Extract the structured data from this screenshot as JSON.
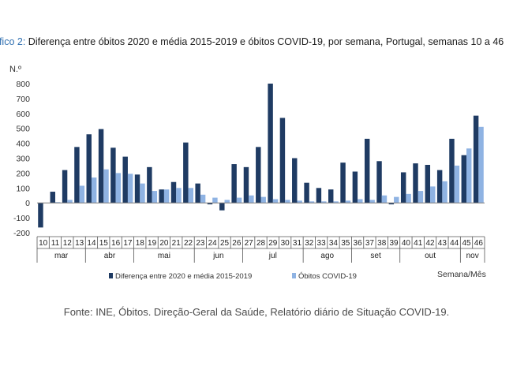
{
  "title_label": "áfico 2:",
  "title_text": " Diferença entre óbitos 2020 e média 2015-2019 e óbitos COVID-19, por semana, Portugal, semanas 10 a 46",
  "source": "Fonte: INE, Óbitos. Direção-Geral da Saúde, Relatório diário de Situação COVID-19.",
  "colors": {
    "dark": "#1f3b63",
    "light": "#8fb3e3"
  },
  "chart_data": {
    "type": "bar",
    "ylabel": "N.º",
    "xlabel": "Semana/Mês",
    "ylim": [
      -200,
      800
    ],
    "yticks": [
      -200,
      -100,
      0,
      100,
      200,
      300,
      400,
      500,
      600,
      700,
      800
    ],
    "categories": [
      "10",
      "11",
      "12",
      "13",
      "14",
      "15",
      "16",
      "17",
      "18",
      "19",
      "20",
      "21",
      "22",
      "23",
      "24",
      "25",
      "26",
      "27",
      "28",
      "29",
      "30",
      "31",
      "32",
      "33",
      "34",
      "35",
      "36",
      "37",
      "38",
      "39",
      "40",
      "41",
      "42",
      "43",
      "44",
      "45",
      "46"
    ],
    "months": [
      {
        "label": "mar",
        "start": 0,
        "end": 3
      },
      {
        "label": "abr",
        "start": 4,
        "end": 7
      },
      {
        "label": "mai",
        "start": 8,
        "end": 12
      },
      {
        "label": "jun",
        "start": 13,
        "end": 16
      },
      {
        "label": "jul",
        "start": 17,
        "end": 21
      },
      {
        "label": "ago",
        "start": 22,
        "end": 25
      },
      {
        "label": "set",
        "start": 26,
        "end": 29
      },
      {
        "label": "out",
        "start": 30,
        "end": 34
      },
      {
        "label": "nov",
        "start": 35,
        "end": 36
      }
    ],
    "series": [
      {
        "name": "Diferença entre 2020 e média 2015-2019",
        "values": [
          -165,
          75,
          220,
          375,
          460,
          495,
          370,
          310,
          190,
          240,
          90,
          140,
          405,
          130,
          -10,
          -50,
          260,
          240,
          375,
          800,
          570,
          300,
          135,
          100,
          90,
          270,
          210,
          430,
          280,
          -10,
          205,
          265,
          255,
          220,
          430,
          320,
          585
        ]
      },
      {
        "name": "Óbitos COVID-19",
        "values": [
          0,
          5,
          20,
          115,
          170,
          225,
          200,
          195,
          130,
          80,
          90,
          100,
          100,
          55,
          35,
          20,
          35,
          50,
          40,
          25,
          20,
          15,
          10,
          10,
          10,
          15,
          25,
          20,
          50,
          40,
          60,
          80,
          110,
          145,
          250,
          365,
          510
        ]
      }
    ]
  }
}
